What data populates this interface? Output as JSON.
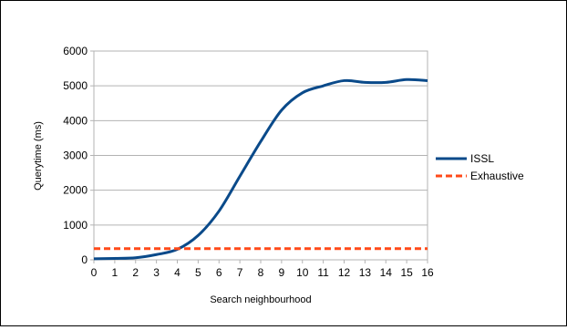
{
  "chart_data": {
    "type": "line",
    "title": "",
    "xlabel": "Search neighbourhood",
    "ylabel": "Querytime (ms)",
    "x_ticks": [
      "0",
      "1",
      "2",
      "3",
      "4",
      "5",
      "6",
      "7",
      "8",
      "9",
      "10",
      "11",
      "12",
      "13",
      "14",
      "15",
      "16"
    ],
    "y_ticks": [
      "0",
      "1000",
      "2000",
      "3000",
      "4000",
      "5000",
      "6000"
    ],
    "xlim": [
      0,
      16
    ],
    "ylim": [
      0,
      6000
    ],
    "grid": "horizontal",
    "legend": "right",
    "series": [
      {
        "name": "ISSL",
        "color": "#0a4a8a",
        "style": "solid",
        "x": [
          0,
          1,
          2,
          3,
          4,
          5,
          6,
          7,
          8,
          9,
          10,
          11,
          12,
          13,
          14,
          15,
          16
        ],
        "values": [
          30,
          40,
          60,
          150,
          300,
          700,
          1400,
          2400,
          3400,
          4300,
          4800,
          5000,
          5150,
          5100,
          5100,
          5180,
          5150
        ]
      },
      {
        "name": "Exhaustive",
        "color": "#ff4a1a",
        "style": "dashed",
        "x": [
          0,
          16
        ],
        "values": [
          320,
          320
        ]
      }
    ]
  }
}
